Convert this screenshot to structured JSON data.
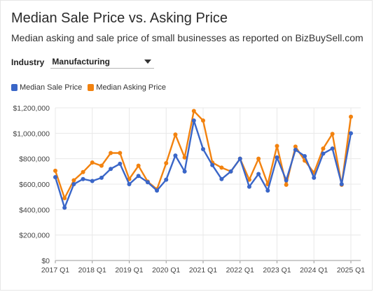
{
  "header": {
    "title": "Median Sale Price vs. Asking Price",
    "subtitle": "Median asking and sale price of small businesses as reported on BizBuySell.com"
  },
  "filter": {
    "label": "Industry",
    "selected": "Manufacturing"
  },
  "colors": {
    "sale": "#3a66c8",
    "asking": "#f2820f",
    "grid": "#e8e8e8",
    "axis_text": "#444444"
  },
  "chart_data": {
    "type": "line",
    "legend_position": "top-left",
    "grid": true,
    "ylim": [
      0,
      1200000
    ],
    "yticks": [
      0,
      200000,
      400000,
      600000,
      800000,
      1000000,
      1200000
    ],
    "ytick_labels": [
      "$0",
      "$200,000",
      "$400,000",
      "$600,000",
      "$800,000",
      "$1,000,000",
      "$1,200,000"
    ],
    "xticks": [
      {
        "quarter_index": 0,
        "label": "2017 Q1"
      },
      {
        "quarter_index": 4,
        "label": "2018 Q1"
      },
      {
        "quarter_index": 8,
        "label": "2019 Q1"
      },
      {
        "quarter_index": 12,
        "label": "2020 Q1"
      },
      {
        "quarter_index": 16,
        "label": "2021 Q1"
      },
      {
        "quarter_index": 20,
        "label": "2022 Q1"
      },
      {
        "quarter_index": 24,
        "label": "2023 Q1"
      },
      {
        "quarter_index": 28,
        "label": "2024 Q1"
      },
      {
        "quarter_index": 32,
        "label": "2025 Q1"
      }
    ],
    "categories": [
      "2017 Q1",
      "2017 Q2",
      "2017 Q3",
      "2017 Q4",
      "2018 Q1",
      "2018 Q2",
      "2018 Q3",
      "2018 Q4",
      "2019 Q1",
      "2019 Q2",
      "2019 Q3",
      "2019 Q4",
      "2020 Q1",
      "2020 Q2",
      "2020 Q3",
      "2020 Q4",
      "2021 Q1",
      "2021 Q2",
      "2021 Q3",
      "2021 Q4",
      "2022 Q1",
      "2022 Q2",
      "2022 Q3",
      "2022 Q4",
      "2023 Q1",
      "2023 Q2",
      "2023 Q3",
      "2023 Q4",
      "2024 Q1",
      "2024 Q2",
      "2024 Q3",
      "2024 Q4",
      "2025 Q1"
    ],
    "series": [
      {
        "name": "Median Sale Price",
        "color_key": "sale",
        "values": [
          655000,
          415000,
          600000,
          640000,
          625000,
          650000,
          720000,
          760000,
          600000,
          665000,
          615000,
          550000,
          635000,
          825000,
          700000,
          1100000,
          875000,
          750000,
          640000,
          700000,
          800000,
          580000,
          680000,
          550000,
          810000,
          630000,
          870000,
          820000,
          650000,
          840000,
          880000,
          600000,
          1000000
        ]
      },
      {
        "name": "Median Asking Price",
        "color_key": "asking",
        "values": [
          705000,
          490000,
          630000,
          695000,
          770000,
          745000,
          845000,
          845000,
          640000,
          745000,
          620000,
          560000,
          765000,
          990000,
          810000,
          1175000,
          1100000,
          770000,
          730000,
          700000,
          800000,
          635000,
          800000,
          600000,
          900000,
          595000,
          895000,
          785000,
          690000,
          880000,
          995000,
          595000,
          1130000
        ]
      }
    ]
  }
}
